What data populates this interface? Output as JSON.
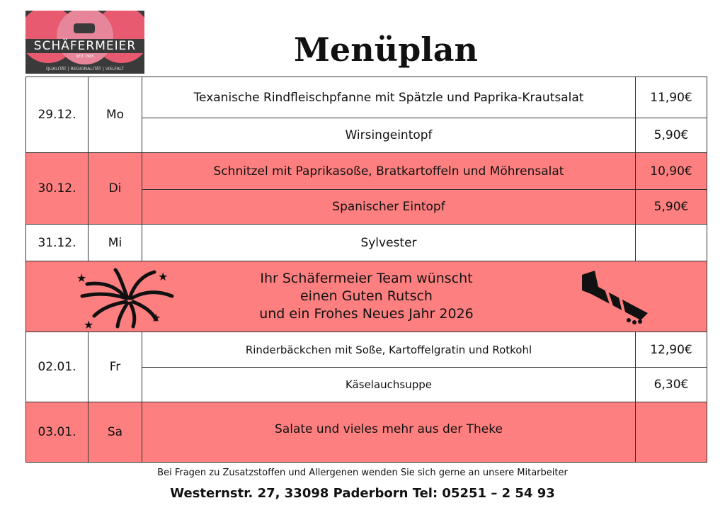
{
  "logo": {
    "brand": "SCHÄFERMEIER",
    "since": "SEIT 1965",
    "tagline": "QUALITÄT | REGIONALITÄT | VIELFALT"
  },
  "title": "Menüplan",
  "days": [
    {
      "date": "29.12.",
      "day": "Mo",
      "items": [
        {
          "dish": "Texanische Rindfleischpfanne mit Spätzle und Paprika-Krautsalat",
          "price": "11,90€"
        },
        {
          "dish": "Wirsingeintopf",
          "price": "5,90€"
        }
      ]
    },
    {
      "date": "30.12.",
      "day": "Di",
      "items": [
        {
          "dish": "Schnitzel mit Paprikasoße, Bratkartoffeln und Möhrensalat",
          "price": "10,90€"
        },
        {
          "dish": "Spanischer Eintopf",
          "price": "5,90€"
        }
      ]
    },
    {
      "date": "31.12.",
      "day": "Mi",
      "items": [
        {
          "dish": "Sylvester",
          "price": ""
        }
      ]
    },
    {
      "date": "02.01.",
      "day": "Fr",
      "items": [
        {
          "dish": "Rinderbäckchen mit Soße, Kartoffelgratin und Rotkohl",
          "price": "12,90€"
        },
        {
          "dish": "Käselauchsuppe",
          "price": "6,30€"
        }
      ]
    },
    {
      "date": "03.01.",
      "day": "Sa",
      "items": [
        {
          "dish": "Salate und vieles mehr aus der Theke",
          "price": ""
        }
      ]
    }
  ],
  "banner": {
    "line1": "Ihr Schäfermeier Team wünscht",
    "line2": "einen Guten Rutsch",
    "line3": "und ein Frohes Neues Jahr 2026",
    "left_icon": "fireworks-icon",
    "right_icon": "rocket-icon"
  },
  "footer": {
    "note": "Bei Fragen zu Zusatzstoffen und Allergenen wenden Sie sich gerne an unsere Mitarbeiter",
    "address": "Westernstr. 27, 33098 Paderborn Tel: 05251 – 2 54 93"
  },
  "colors": {
    "highlight": "#fe7f7f",
    "logo_bg": "#3a3a3a"
  }
}
